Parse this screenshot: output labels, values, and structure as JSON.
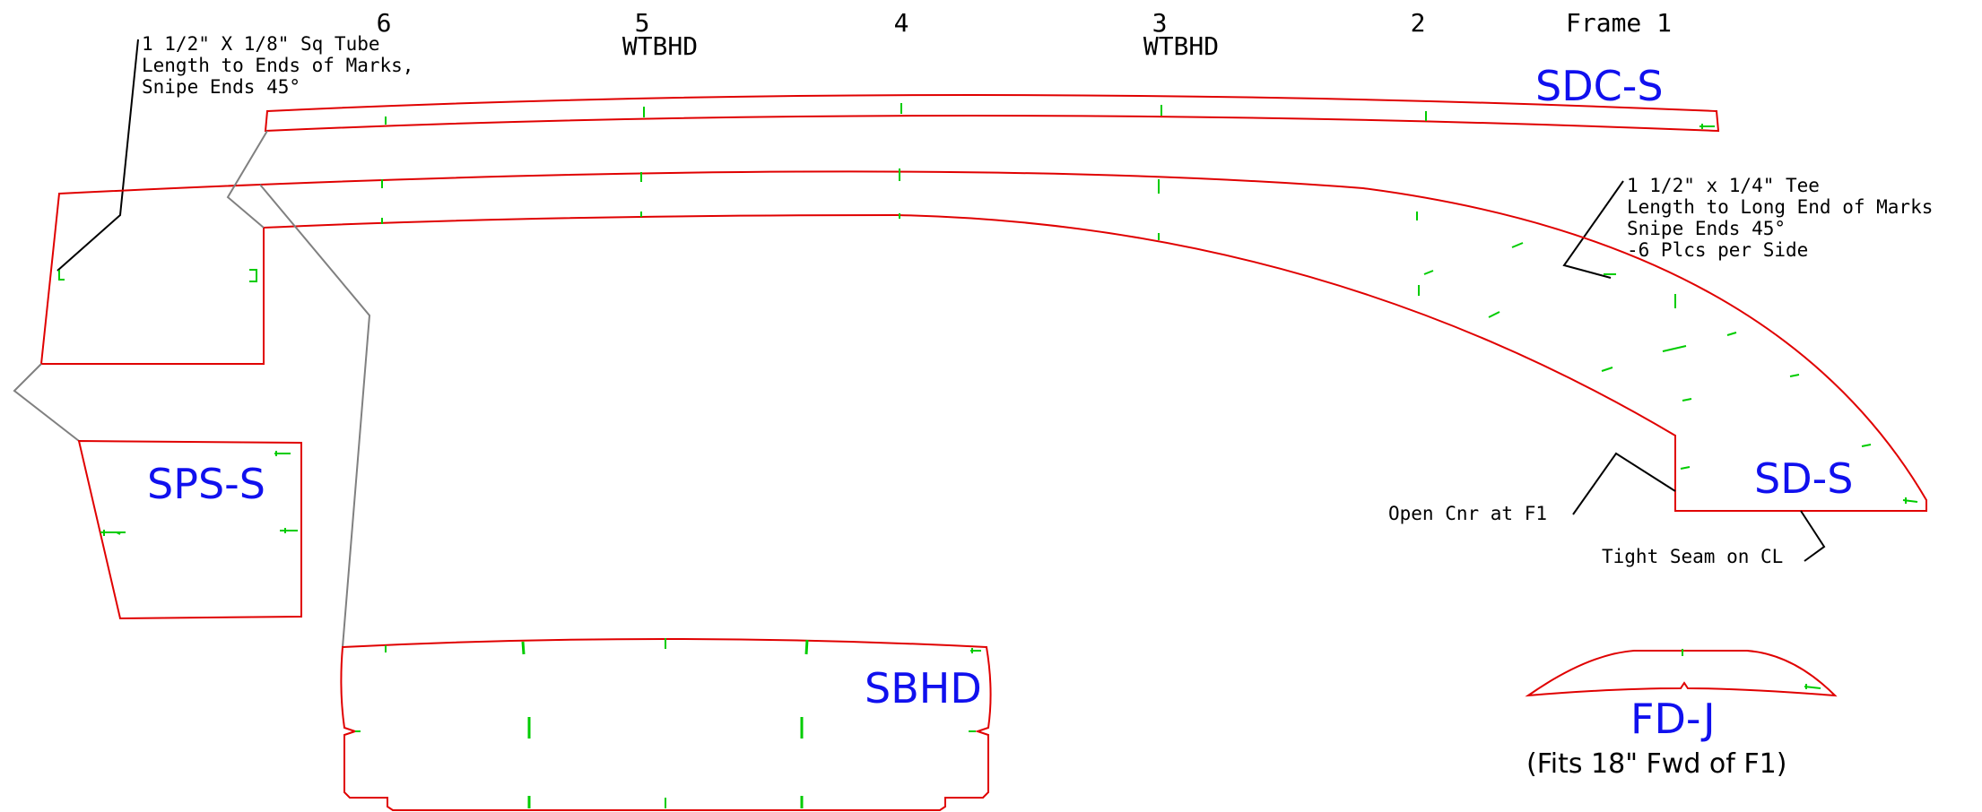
{
  "frames": [
    {
      "number": "6",
      "tag": ""
    },
    {
      "number": "5",
      "tag": "WTBHD"
    },
    {
      "number": "4",
      "tag": ""
    },
    {
      "number": "3",
      "tag": "WTBHD"
    },
    {
      "number": "2",
      "tag": ""
    },
    {
      "number": "Frame  1",
      "tag": ""
    }
  ],
  "parts": {
    "sdc": "SDC-S",
    "sps": "SPS-S",
    "sd": "SD-S",
    "sbhd": "SBHD",
    "fd": "FD-J",
    "fd_note": "(Fits 18\" Fwd of F1)"
  },
  "notes": {
    "tube": [
      "1 1/2\" X 1/8\" Sq Tube",
      "Length to Ends of Marks,",
      "Snipe Ends 45°"
    ],
    "tee": [
      "1 1/2\" x 1/4\" Tee",
      "Length to Long End of Marks",
      "Snipe Ends 45°",
      "-6 Plcs per Side"
    ],
    "open_corner": "Open Cnr at F1",
    "tight_seam": "Tight Seam on CL"
  },
  "colors": {
    "outline": "#e00000",
    "marks": "#00cc00",
    "part_labels": "#1010ee",
    "text": "#000000",
    "association_lines": "#808080"
  }
}
